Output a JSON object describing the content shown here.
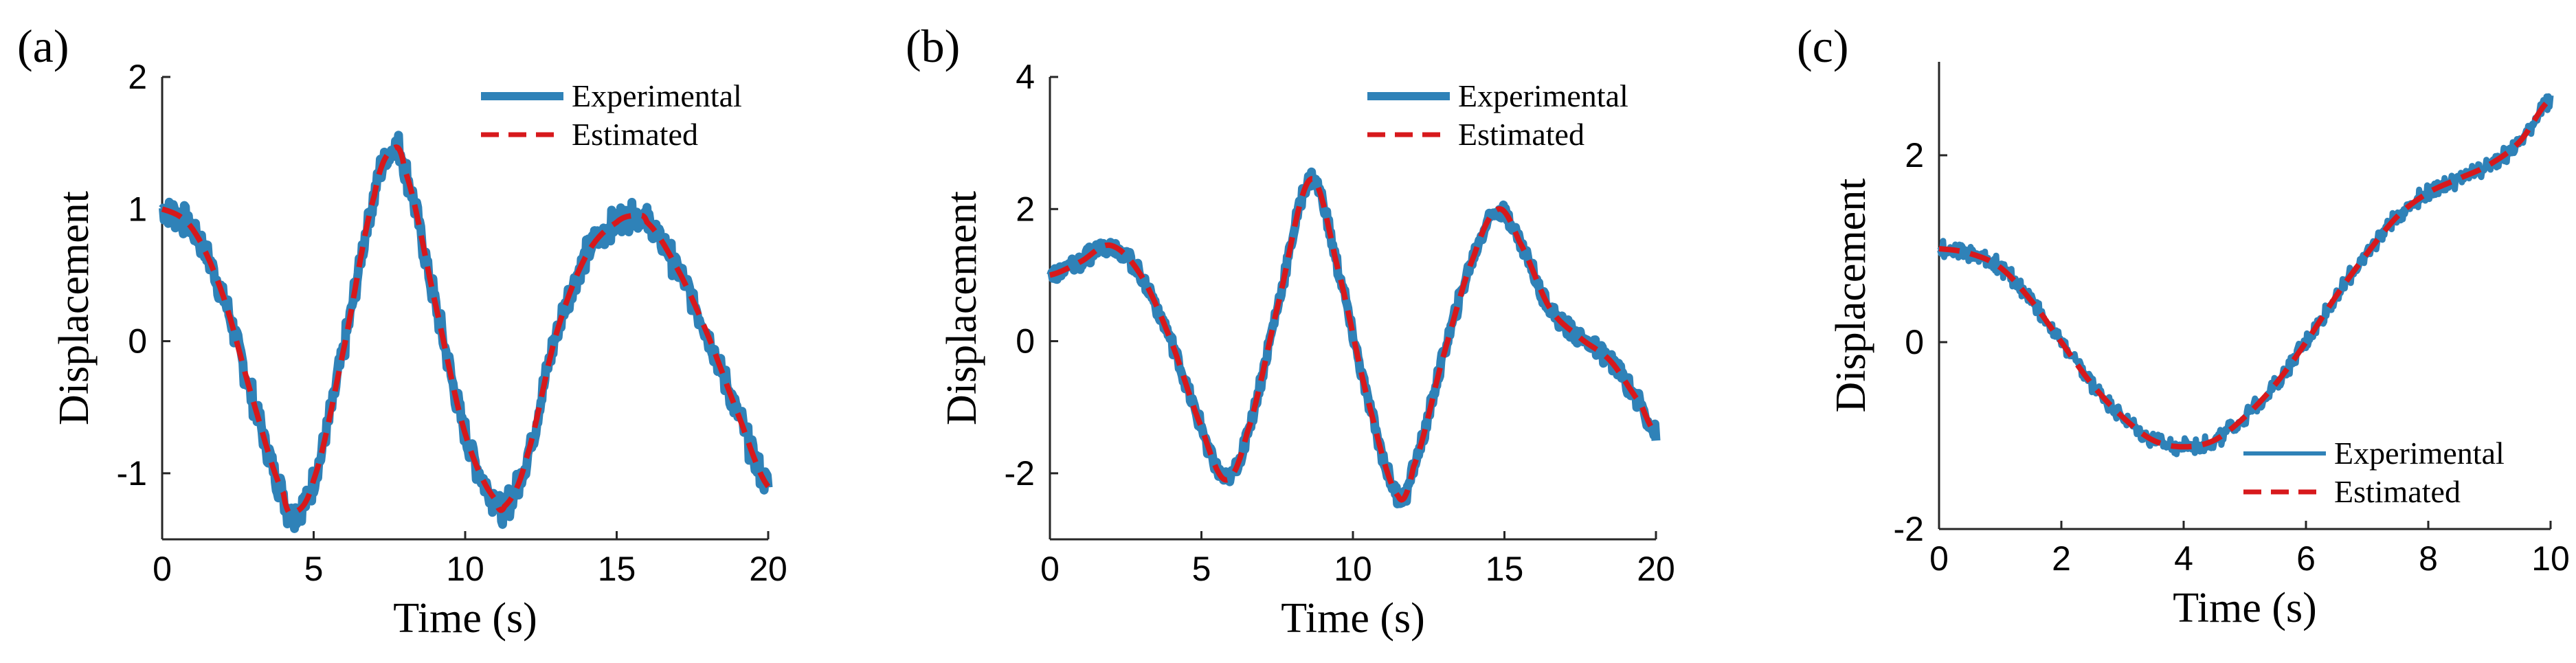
{
  "colors": {
    "experimental": "#2f82b8",
    "estimated": "#d7191c",
    "axis": "#262626"
  },
  "chart_data": [
    {
      "type": "line",
      "panel_label": "(a)",
      "xlabel": "Time (s)",
      "ylabel": "Displacement",
      "xlim": [
        0,
        20
      ],
      "ylim": [
        -1.5,
        2
      ],
      "xticks": [
        0,
        5,
        10,
        15,
        20
      ],
      "yticks": [
        -1,
        0,
        1,
        2
      ],
      "legend_position": "top-right",
      "series": [
        {
          "name": "Experimental",
          "style": "solid-thick",
          "noise": 0.09
        },
        {
          "name": "Estimated",
          "style": "dashed"
        }
      ],
      "x": [
        0,
        1,
        2,
        3,
        4,
        4.3,
        5,
        6,
        7,
        7.6,
        8,
        9,
        10,
        11,
        11.3,
        12,
        13,
        14,
        15,
        15.7,
        16,
        17,
        18,
        19,
        20
      ],
      "y": [
        1.0,
        0.85,
        0.35,
        -0.45,
        -1.15,
        -1.3,
        -1.05,
        -0.05,
        1.1,
        1.45,
        1.3,
        0.3,
        -0.7,
        -1.2,
        -1.25,
        -0.9,
        0.05,
        0.65,
        0.9,
        0.95,
        0.9,
        0.55,
        0.05,
        -0.55,
        -1.1
      ]
    },
    {
      "type": "line",
      "panel_label": "(b)",
      "xlabel": "Time (s)",
      "ylabel": "Displacement",
      "xlim": [
        0,
        20
      ],
      "ylim": [
        -3,
        4
      ],
      "xticks": [
        0,
        5,
        10,
        15,
        20
      ],
      "yticks": [
        -2,
        0,
        2,
        4
      ],
      "legend_position": "top-right",
      "series": [
        {
          "name": "Experimental",
          "style": "solid-thick",
          "noise": 0.1
        },
        {
          "name": "Estimated",
          "style": "dashed"
        }
      ],
      "x": [
        0,
        1,
        2,
        3,
        4,
        5,
        5.8,
        6.5,
        7.5,
        8.6,
        9.5,
        10.5,
        11.5,
        12,
        13,
        14,
        14.8,
        15.5,
        16.5,
        17.5,
        18.5,
        19.5,
        20
      ],
      "y": [
        1.0,
        1.2,
        1.45,
        1.0,
        0.0,
        -1.3,
        -2.1,
        -1.4,
        0.5,
        2.45,
        1.1,
        -0.9,
        -2.35,
        -1.9,
        -0.2,
        1.3,
        2.0,
        1.5,
        0.5,
        0.05,
        -0.3,
        -0.95,
        -1.4
      ]
    },
    {
      "type": "line",
      "panel_label": "(c)",
      "xlabel": "Time (s)",
      "ylabel": "Displacement",
      "xlim": [
        0,
        10
      ],
      "ylim": [
        -2,
        3
      ],
      "xticks": [
        0,
        2,
        4,
        6,
        8,
        10
      ],
      "yticks": [
        -2,
        0,
        2
      ],
      "legend_position": "bottom-right",
      "series": [
        {
          "name": "Experimental",
          "style": "solid-thin",
          "noise": 0.07
        },
        {
          "name": "Estimated",
          "style": "dashed"
        }
      ],
      "x": [
        0,
        0.5,
        1,
        1.5,
        2,
        2.5,
        3,
        3.5,
        4,
        4.5,
        5,
        5.5,
        6,
        6.5,
        7,
        7.5,
        8,
        8.5,
        9,
        9.5,
        10
      ],
      "y": [
        1.0,
        0.95,
        0.8,
        0.45,
        0.0,
        -0.45,
        -0.8,
        -1.05,
        -1.12,
        -1.05,
        -0.8,
        -0.45,
        0.0,
        0.5,
        0.95,
        1.35,
        1.6,
        1.75,
        1.9,
        2.15,
        2.6
      ]
    }
  ]
}
